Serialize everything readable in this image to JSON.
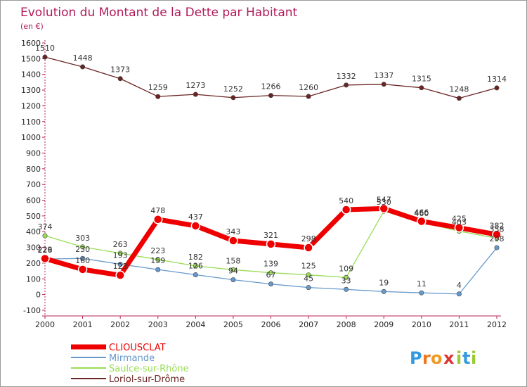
{
  "chart_data": {
    "type": "line",
    "title": "Evolution du Montant de la Dette par Habitant",
    "subtitle": "(en €)",
    "xlabel": "",
    "ylabel": "",
    "x": [
      "2000",
      "2001",
      "2002",
      "2003",
      "2004",
      "2005",
      "2006",
      "2007",
      "2008",
      "2009",
      "2010",
      "2011",
      "2012"
    ],
    "ylim": [
      -100,
      1600
    ],
    "yticks": [
      -100,
      0,
      100,
      200,
      300,
      400,
      500,
      600,
      700,
      800,
      900,
      1000,
      1100,
      1200,
      1300,
      1400,
      1500,
      1600
    ],
    "grid": false,
    "legend_position": "bottom-left",
    "series": [
      {
        "name": "Loriol-sur-Drôme",
        "color": "#6b2424",
        "values": [
          1510,
          1448,
          1373,
          1259,
          1273,
          1252,
          1266,
          1260,
          1332,
          1337,
          1315,
          1248,
          1314
        ]
      },
      {
        "name": "Saulce-sur-Rhône",
        "color": "#99dd55",
        "values": [
          374,
          303,
          263,
          223,
          182,
          158,
          139,
          125,
          109,
          530,
          460,
          403,
          358
        ]
      },
      {
        "name": "Mirmande",
        "color": "#6699cc",
        "values": [
          226,
          230,
          193,
          159,
          126,
          94,
          67,
          45,
          33,
          19,
          11,
          4,
          298
        ]
      },
      {
        "name": "CLIOUSCLAT",
        "color": "#ee0000",
        "values": [
          229,
          160,
          123,
          478,
          437,
          343,
          321,
          298,
          540,
          547,
          466,
          425,
          382
        ]
      }
    ]
  },
  "logo": {
    "letters": [
      "P",
      "r",
      "o",
      "x",
      "i",
      "t",
      "i"
    ]
  }
}
